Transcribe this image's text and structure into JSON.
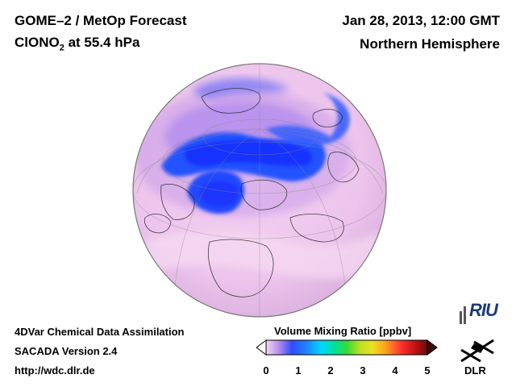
{
  "header": {
    "title": "GOME–2 / MetOp Forecast",
    "species": "ClONO",
    "species_sub": "2",
    "level": " at 55.4 hPa",
    "date": "Jan 28, 2013, 12:00 GMT",
    "region": "Northern Hemisphere"
  },
  "footer": {
    "line1": "4DVar Chemical Data Assimilation",
    "line2": "SACADA Version 2.4",
    "line3": "http://wdc.dlr.de"
  },
  "colorbar": {
    "title": "Volume Mixing Ratio [ppbv]",
    "ticks": [
      "0",
      "1",
      "2",
      "3",
      "4",
      "5"
    ],
    "min": 0,
    "max": 5
  },
  "logos": {
    "riu": "RIU",
    "dlr": "DLR"
  },
  "colors": {
    "low_purple": "#f0c8f0",
    "depleted_blue": "#1a4cff",
    "cyan": "#00d8ff",
    "high_red": "#d01010"
  }
}
